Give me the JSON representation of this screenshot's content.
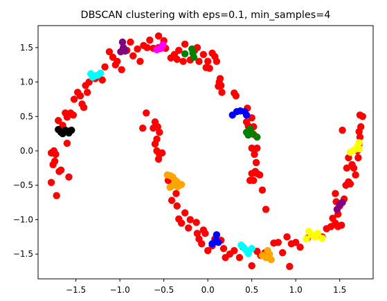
{
  "chart_data": {
    "type": "scatter",
    "title": "DBSCAN clustering with eps=0.1, min_samples=4",
    "xlabel": "",
    "ylabel": "",
    "xlim": [
      -1.93,
      1.88
    ],
    "ylim": [
      -1.86,
      1.82
    ],
    "xticks": [
      -1.5,
      -1.0,
      -0.5,
      0.0,
      0.5,
      1.0,
      1.5
    ],
    "yticks": [
      -1.5,
      -1.0,
      -0.5,
      0.0,
      0.5,
      1.0,
      1.5
    ],
    "xtick_labels": [
      "−1.5",
      "−1.0",
      "−0.5",
      "0.0",
      "0.5",
      "1.0",
      "1.5"
    ],
    "ytick_labels": [
      "−1.5",
      "−1.0",
      "−0.5",
      "0.0",
      "0.5",
      "1.0",
      "1.5"
    ],
    "grid": false,
    "legend": "none",
    "series": [
      {
        "color": "#ff0000",
        "points": [
          [
            -1.78,
            -0.03
          ],
          [
            -1.76,
            -0.2
          ],
          [
            -1.75,
            0.0
          ],
          [
            -1.74,
            -0.15
          ],
          [
            -1.73,
            -0.05
          ],
          [
            -1.78,
            -0.46
          ],
          [
            -1.72,
            -0.65
          ],
          [
            -1.69,
            -0.3
          ],
          [
            -1.67,
            -0.28
          ],
          [
            -1.7,
            0.44
          ],
          [
            -1.65,
            0.37
          ],
          [
            -1.62,
            0.55
          ],
          [
            -1.6,
            0.49
          ],
          [
            -1.56,
            0.55
          ],
          [
            -1.53,
            0.52
          ],
          [
            -1.57,
            0.29
          ],
          [
            -1.6,
            0.11
          ],
          [
            -1.58,
            -0.38
          ],
          [
            -1.52,
            0.75
          ],
          [
            -1.48,
            0.85
          ],
          [
            -1.45,
            0.8
          ],
          [
            -1.43,
            0.68
          ],
          [
            -1.41,
            0.63
          ],
          [
            -1.39,
            0.95
          ],
          [
            -1.35,
            1.0
          ],
          [
            -1.37,
            0.85
          ],
          [
            -1.3,
            1.08
          ],
          [
            -1.28,
            1.05
          ],
          [
            -1.2,
            1.03
          ],
          [
            -1.17,
            1.22
          ],
          [
            -1.12,
            1.44
          ],
          [
            -1.08,
            1.36
          ],
          [
            -1.05,
            1.25
          ],
          [
            -1.03,
            1.3
          ],
          [
            -0.98,
            1.18
          ],
          [
            -0.92,
            1.46
          ],
          [
            -0.88,
            1.58
          ],
          [
            -0.85,
            1.38
          ],
          [
            -0.8,
            1.48
          ],
          [
            -0.77,
            1.3
          ],
          [
            -0.73,
            1.53
          ],
          [
            -0.69,
            1.5
          ],
          [
            -0.66,
            1.61
          ],
          [
            -0.62,
            1.49
          ],
          [
            -0.56,
            1.5
          ],
          [
            -0.56,
            1.67
          ],
          [
            -0.5,
            1.6
          ],
          [
            -0.48,
            1.49
          ],
          [
            -0.42,
            1.35
          ],
          [
            -0.38,
            1.4
          ],
          [
            -0.35,
            1.33
          ],
          [
            -0.33,
            1.46
          ],
          [
            -0.28,
            1.3
          ],
          [
            -0.26,
            1.55
          ],
          [
            -0.2,
            1.32
          ],
          [
            -0.15,
            1.46
          ],
          [
            -0.12,
            1.5
          ],
          [
            -0.1,
            1.3
          ],
          [
            -0.05,
            1.4
          ],
          [
            -0.02,
            1.21
          ],
          [
            0.0,
            1.3
          ],
          [
            0.02,
            1.2
          ],
          [
            0.05,
            1.42
          ],
          [
            0.08,
            1.37
          ],
          [
            0.1,
            1.3
          ],
          [
            0.14,
            1.05
          ],
          [
            0.13,
            1.0
          ],
          [
            0.15,
            0.95
          ],
          [
            0.16,
            0.85
          ],
          [
            0.12,
            0.94
          ],
          [
            0.3,
            0.84
          ],
          [
            0.32,
            0.8
          ],
          [
            0.45,
            0.62
          ],
          [
            0.44,
            0.42
          ],
          [
            0.46,
            0.36
          ],
          [
            0.5,
            0.48
          ],
          [
            0.52,
            0.35
          ],
          [
            0.52,
            0.24
          ],
          [
            0.5,
            0.04
          ],
          [
            0.56,
            0.04
          ],
          [
            0.53,
            -0.05
          ],
          [
            0.55,
            -0.17
          ],
          [
            0.54,
            -0.3
          ],
          [
            0.56,
            -0.33
          ],
          [
            0.52,
            -0.43
          ],
          [
            0.5,
            -0.33
          ],
          [
            0.48,
            -0.43
          ],
          [
            0.59,
            -0.35
          ],
          [
            0.62,
            -0.57
          ],
          [
            0.66,
            -0.85
          ],
          [
            -0.7,
            0.55
          ],
          [
            -0.6,
            0.42
          ],
          [
            -0.62,
            0.33
          ],
          [
            -0.57,
            0.35
          ],
          [
            -0.55,
            0.27
          ],
          [
            -0.58,
            0.17
          ],
          [
            -0.6,
            0.1
          ],
          [
            -0.58,
            0.0
          ],
          [
            -0.55,
            -0.05
          ],
          [
            -0.74,
            0.33
          ],
          [
            -0.56,
            -0.12
          ],
          [
            -0.52,
            -0.03
          ],
          [
            -0.45,
            -0.43
          ],
          [
            -0.41,
            -0.72
          ],
          [
            -0.36,
            -0.62
          ],
          [
            -0.35,
            -0.8
          ],
          [
            -0.33,
            -0.99
          ],
          [
            -0.3,
            -1.05
          ],
          [
            -0.26,
            -0.9
          ],
          [
            -0.22,
            -1.12
          ],
          [
            -0.2,
            -1.0
          ],
          [
            -0.13,
            -1.04
          ],
          [
            -0.12,
            -1.2
          ],
          [
            -0.1,
            -1.28
          ],
          [
            -0.05,
            -1.15
          ],
          [
            -0.03,
            -1.2
          ],
          [
            -0.07,
            -1.35
          ],
          [
            0.0,
            -1.45
          ],
          [
            0.05,
            -1.38
          ],
          [
            0.08,
            -1.28
          ],
          [
            0.15,
            -1.3
          ],
          [
            0.18,
            -1.42
          ],
          [
            0.2,
            -1.55
          ],
          [
            0.25,
            -1.5
          ],
          [
            0.3,
            -1.45
          ],
          [
            0.36,
            -1.55
          ],
          [
            0.4,
            -1.4
          ],
          [
            0.5,
            -1.67
          ],
          [
            0.56,
            -1.46
          ],
          [
            0.6,
            -1.52
          ],
          [
            0.65,
            -1.48
          ],
          [
            0.75,
            -1.34
          ],
          [
            0.8,
            -1.33
          ],
          [
            0.85,
            -1.48
          ],
          [
            0.9,
            -1.25
          ],
          [
            0.95,
            -1.35
          ],
          [
            1.0,
            -1.33
          ],
          [
            1.05,
            -1.4
          ],
          [
            0.93,
            -1.68
          ],
          [
            1.13,
            -1.27
          ],
          [
            1.25,
            -1.23
          ],
          [
            1.3,
            -1.25
          ],
          [
            1.35,
            -1.13
          ],
          [
            1.4,
            -1.1
          ],
          [
            1.42,
            -0.98
          ],
          [
            1.45,
            -1.05
          ],
          [
            1.48,
            -0.92
          ],
          [
            1.5,
            -0.8
          ],
          [
            1.52,
            -1.08
          ],
          [
            1.55,
            -0.7
          ],
          [
            1.57,
            -0.5
          ],
          [
            1.6,
            -0.45
          ],
          [
            1.62,
            -0.48
          ],
          [
            1.58,
            -0.25
          ],
          [
            1.6,
            -0.1
          ],
          [
            1.64,
            -0.2
          ],
          [
            1.66,
            -0.25
          ],
          [
            1.68,
            -0.35
          ],
          [
            1.7,
            0.0
          ],
          [
            1.71,
            -0.1
          ],
          [
            1.72,
            0.1
          ],
          [
            1.73,
            0.2
          ],
          [
            1.72,
            0.28
          ],
          [
            1.74,
            0.35
          ],
          [
            1.73,
            0.52
          ],
          [
            1.76,
            0.5
          ],
          [
            1.53,
            0.3
          ],
          [
            1.45,
            -0.62
          ],
          [
            1.46,
            -0.74
          ],
          [
            1.48,
            -1.1
          ]
        ]
      },
      {
        "color": "#000000",
        "points": [
          [
            -1.7,
            0.31
          ],
          [
            -1.67,
            0.27
          ],
          [
            -1.65,
            0.25
          ],
          [
            -1.62,
            0.3
          ],
          [
            -1.58,
            0.26
          ],
          [
            -1.55,
            0.3
          ]
        ]
      },
      {
        "color": "#00ffff",
        "points": [
          [
            -1.33,
            1.12
          ],
          [
            -1.31,
            1.07
          ],
          [
            -1.28,
            1.09
          ],
          [
            -1.25,
            1.1
          ],
          [
            -1.22,
            1.13
          ],
          [
            0.38,
            -1.37
          ],
          [
            0.41,
            -1.41
          ],
          [
            0.44,
            -1.45
          ],
          [
            0.46,
            -1.49
          ],
          [
            0.5,
            -1.42
          ]
        ]
      },
      {
        "color": "#800080",
        "points": [
          [
            -0.97,
            1.58
          ],
          [
            -0.99,
            1.44
          ],
          [
            -0.96,
            1.5
          ],
          [
            -0.94,
            1.45
          ],
          [
            1.47,
            -0.85
          ],
          [
            1.5,
            -0.78
          ],
          [
            1.53,
            -0.75
          ]
        ]
      },
      {
        "color": "#ff00ff",
        "points": [
          [
            -0.58,
            1.47
          ],
          [
            -0.56,
            1.48
          ],
          [
            -0.53,
            1.49
          ],
          [
            -0.51,
            1.54
          ]
        ]
      },
      {
        "color": "#008000",
        "points": [
          [
            -0.26,
            1.41
          ],
          [
            -0.18,
            1.48
          ],
          [
            -0.16,
            1.36
          ],
          [
            -0.17,
            1.42
          ],
          [
            0.44,
            0.27
          ],
          [
            0.46,
            0.23
          ],
          [
            0.48,
            0.32
          ],
          [
            0.5,
            0.26
          ],
          [
            0.56,
            0.2
          ]
        ]
      },
      {
        "color": "#0000ff",
        "points": [
          [
            0.28,
            0.52
          ],
          [
            0.33,
            0.57
          ],
          [
            0.37,
            0.58
          ],
          [
            0.42,
            0.57
          ],
          [
            0.44,
            0.52
          ],
          [
            0.1,
            -1.22
          ],
          [
            0.09,
            -1.3
          ],
          [
            0.05,
            -1.35
          ],
          [
            0.12,
            -1.33
          ]
        ]
      },
      {
        "color": "#ffa500",
        "points": [
          [
            -0.46,
            -0.35
          ],
          [
            -0.43,
            -0.36
          ],
          [
            -0.4,
            -0.38
          ],
          [
            -0.39,
            -0.5
          ],
          [
            -0.37,
            -0.43
          ],
          [
            -0.35,
            -0.45
          ],
          [
            -0.34,
            -0.52
          ],
          [
            -0.3,
            -0.49
          ],
          [
            -0.43,
            -0.53
          ],
          [
            0.62,
            -1.52
          ],
          [
            0.68,
            -1.45
          ],
          [
            0.7,
            -1.5
          ],
          [
            0.72,
            -1.58
          ],
          [
            0.66,
            -1.55
          ]
        ]
      },
      {
        "color": "#ffff00",
        "points": [
          [
            1.12,
            -1.28
          ],
          [
            1.15,
            -1.17
          ],
          [
            1.18,
            -1.22
          ],
          [
            1.22,
            -1.25
          ],
          [
            1.25,
            -1.2
          ],
          [
            1.3,
            -1.27
          ],
          [
            1.62,
            -0.02
          ],
          [
            1.66,
            0.01
          ],
          [
            1.7,
            0.06
          ],
          [
            1.72,
            0.03
          ],
          [
            1.72,
            0.12
          ]
        ]
      }
    ]
  }
}
